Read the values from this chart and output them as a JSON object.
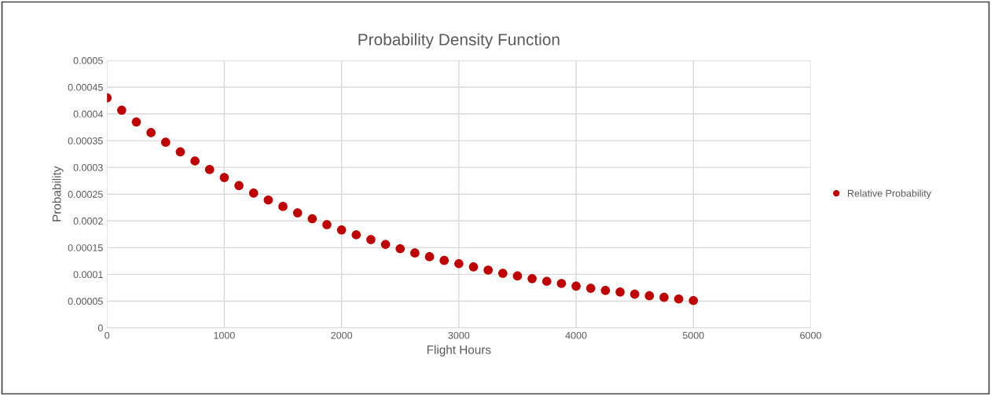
{
  "chart_data": {
    "type": "scatter",
    "title": "Probability Density Function",
    "xlabel": "Flight Hours",
    "ylabel": "Probability",
    "x": [
      0,
      125,
      250,
      375,
      500,
      625,
      750,
      875,
      1000,
      1125,
      1250,
      1375,
      1500,
      1625,
      1750,
      1875,
      2000,
      2125,
      2250,
      2375,
      2500,
      2625,
      2750,
      2875,
      3000,
      3125,
      3250,
      3375,
      3500,
      3625,
      3750,
      3875,
      4000,
      4125,
      4250,
      4375,
      4500,
      4625,
      4750,
      4875,
      5000
    ],
    "series": [
      {
        "name": "Relative Probability",
        "color": "#c00000",
        "values": [
          0.00043,
          0.000407,
          0.000385,
          0.000365,
          0.000347,
          0.000329,
          0.000312,
          0.000296,
          0.000281,
          0.000266,
          0.000252,
          0.000239,
          0.000227,
          0.000215,
          0.000204,
          0.000193,
          0.000183,
          0.000174,
          0.000165,
          0.000156,
          0.000148,
          0.00014,
          0.000133,
          0.000126,
          0.00012,
          0.000114,
          0.000108,
          0.000102,
          9.7e-05,
          9.2e-05,
          8.7e-05,
          8.3e-05,
          7.8e-05,
          7.4e-05,
          7e-05,
          6.7e-05,
          6.3e-05,
          6e-05,
          5.7e-05,
          5.4e-05,
          5.1e-05
        ]
      }
    ],
    "xlim": [
      0,
      6000
    ],
    "xticks": [
      0,
      1000,
      2000,
      3000,
      4000,
      5000,
      6000
    ],
    "ylim": [
      0,
      0.0005
    ],
    "yticks": [
      {
        "value": 0,
        "label": "0"
      },
      {
        "value": 5e-05,
        "label": "0.00005"
      },
      {
        "value": 0.0001,
        "label": "0.0001"
      },
      {
        "value": 0.00015,
        "label": "0.00015"
      },
      {
        "value": 0.0002,
        "label": "0.0002"
      },
      {
        "value": 0.00025,
        "label": "0.00025"
      },
      {
        "value": 0.0003,
        "label": "0.0003"
      },
      {
        "value": 0.00035,
        "label": "0.00035"
      },
      {
        "value": 0.0004,
        "label": "0.0004"
      },
      {
        "value": 0.00045,
        "label": "0.00045"
      },
      {
        "value": 0.0005,
        "label": "0.0005"
      }
    ],
    "grid": true,
    "legend": "right",
    "marker": "circle"
  }
}
